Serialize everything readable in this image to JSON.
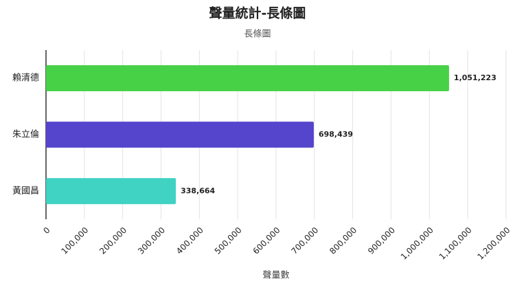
{
  "chart_data": {
    "type": "barh",
    "title": "聲量統計-長條圖",
    "subtitle": "長條圖",
    "x_label": "聲量數",
    "categories": [
      "賴清德",
      "朱立倫",
      "黃國昌"
    ],
    "values": [
      1051223,
      698439,
      338664
    ],
    "value_labels": [
      "1,051,223",
      "698,439",
      "338,664"
    ],
    "colors": [
      "#47d147",
      "#5544cc",
      "#40d2c2"
    ],
    "xlim": [
      0,
      1200000
    ],
    "xticks": [
      0,
      {
        "value": 100000,
        "label": "100,000"
      },
      {
        "value": 200000,
        "label": "200,000"
      },
      {
        "value": 300000,
        "label": "300,000"
      },
      {
        "value": 400000,
        "label": "400,000"
      },
      {
        "value": 500000,
        "label": "500,000"
      },
      {
        "value": 600000,
        "label": "600,000"
      },
      {
        "value": 700000,
        "label": "700,000"
      },
      {
        "value": 800000,
        "label": "800,000"
      },
      {
        "value": 900000,
        "label": "900,000"
      },
      {
        "value": 1000000,
        "label": "1,000,000"
      },
      {
        "value": 1100000,
        "label": "1,100,000"
      },
      {
        "value": 1200000,
        "label": "1,200,000"
      }
    ],
    "grid": true
  }
}
